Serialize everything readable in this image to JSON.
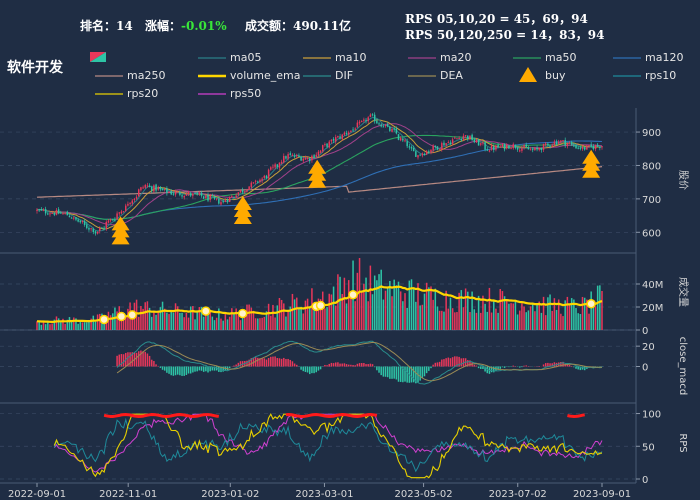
{
  "header": {
    "rank_label": "排名：",
    "rank_value": "14",
    "change_label": "涨幅：",
    "change_value": "-0.01%",
    "turnover_label": "成交额：",
    "turnover_value": "490.11亿",
    "rps_short": "RPS 05,10,20 = 45，69，94",
    "rps_long": "RPS 50,120,250 = 14，83，94",
    "sector": "软件开发"
  },
  "legend": [
    {
      "label": "ma05",
      "color": "#2a7f86",
      "kind": "line"
    },
    {
      "label": "ma10",
      "color": "#c9a03a",
      "kind": "line"
    },
    {
      "label": "ma20",
      "color": "#a0418a",
      "kind": "line"
    },
    {
      "label": "ma50",
      "color": "#2aa35f",
      "kind": "line"
    },
    {
      "label": "ma120",
      "color": "#2f6fb5",
      "kind": "line"
    },
    {
      "label": "ma250",
      "color": "#b88a83",
      "kind": "line"
    },
    {
      "label": "volume_ema",
      "color": "#ffd700",
      "kind": "thick"
    },
    {
      "label": "DIF",
      "color": "#2a8c8c",
      "kind": "line"
    },
    {
      "label": "DEA",
      "color": "#9a8a55",
      "kind": "line"
    },
    {
      "label": "buy",
      "color": "#ffaa00",
      "kind": "marker"
    },
    {
      "label": "rps10",
      "color": "#1f8a9a",
      "kind": "line"
    },
    {
      "label": "rps20",
      "color": "#e8d000",
      "kind": "line"
    },
    {
      "label": "rps50",
      "color": "#d040d0",
      "kind": "line"
    }
  ],
  "colors": {
    "up": "#e8375a",
    "down": "#2ec4a6",
    "bg": "#1f2d44",
    "grid": "#3a4a63",
    "buy": "#ffaa00"
  },
  "chart_data": [
    {
      "type": "candlestick",
      "ylabel": "股价",
      "ylim": [
        550,
        960
      ],
      "yticks": [
        "600",
        "700",
        "800",
        "900"
      ],
      "x_ticks": [
        "2022-09-01",
        "2022-11-01",
        "2023-01-02",
        "2023-03-01",
        "2023-05-02",
        "2023-07-02",
        "2023-09-01"
      ],
      "close_anchors": [
        [
          "2022-09-01",
          665
        ],
        [
          "2022-09-20",
          655
        ],
        [
          "2022-10-10",
          600
        ],
        [
          "2022-10-25",
          660
        ],
        [
          "2022-11-10",
          740
        ],
        [
          "2022-11-25",
          720
        ],
        [
          "2022-12-15",
          710
        ],
        [
          "2022-12-30",
          690
        ],
        [
          "2023-01-10",
          720
        ],
        [
          "2023-01-25",
          760
        ],
        [
          "2023-02-10",
          830
        ],
        [
          "2023-02-25",
          820
        ],
        [
          "2023-03-10",
          870
        ],
        [
          "2023-03-25",
          910
        ],
        [
          "2023-04-05",
          945
        ],
        [
          "2023-04-20",
          900
        ],
        [
          "2023-05-05",
          830
        ],
        [
          "2023-05-20",
          860
        ],
        [
          "2023-06-05",
          890
        ],
        [
          "2023-06-20",
          850
        ],
        [
          "2023-07-05",
          860
        ],
        [
          "2023-07-20",
          845
        ],
        [
          "2023-08-05",
          875
        ],
        [
          "2023-08-20",
          850
        ],
        [
          "2023-09-01",
          860
        ]
      ],
      "buy_signals": [
        "2022-10-25",
        "2023-01-12",
        "2023-03-01",
        "2023-08-25"
      ]
    },
    {
      "type": "bar",
      "ylabel": "成交量",
      "ylim": [
        0,
        60
      ],
      "yticks": [
        "0",
        "20M",
        "40M"
      ],
      "volume_anchors_M": [
        [
          "2022-09-01",
          8
        ],
        [
          "2022-10-10",
          9
        ],
        [
          "2022-11-01",
          20
        ],
        [
          "2022-11-25",
          17
        ],
        [
          "2022-12-30",
          13
        ],
        [
          "2023-01-25",
          17
        ],
        [
          "2023-02-20",
          24
        ],
        [
          "2023-03-10",
          30
        ],
        [
          "2023-03-25",
          46
        ],
        [
          "2023-04-10",
          38
        ],
        [
          "2023-05-02",
          32
        ],
        [
          "2023-05-25",
          27
        ],
        [
          "2023-06-25",
          26
        ],
        [
          "2023-07-25",
          22
        ],
        [
          "2023-08-20",
          20
        ],
        [
          "2023-09-01",
          28
        ]
      ]
    },
    {
      "type": "macd",
      "ylabel": "close_macd",
      "ylim": [
        -30,
        30
      ],
      "yticks": [
        "0",
        "20"
      ]
    },
    {
      "type": "line",
      "ylabel": "RPS",
      "ylim": [
        0,
        110
      ],
      "yticks": [
        "0",
        "50",
        "100"
      ],
      "series": [
        {
          "name": "rps10",
          "color": "#1f8a9a"
        },
        {
          "name": "rps20",
          "color": "#e8d000"
        },
        {
          "name": "rps50",
          "color": "#d040d0"
        }
      ]
    }
  ]
}
